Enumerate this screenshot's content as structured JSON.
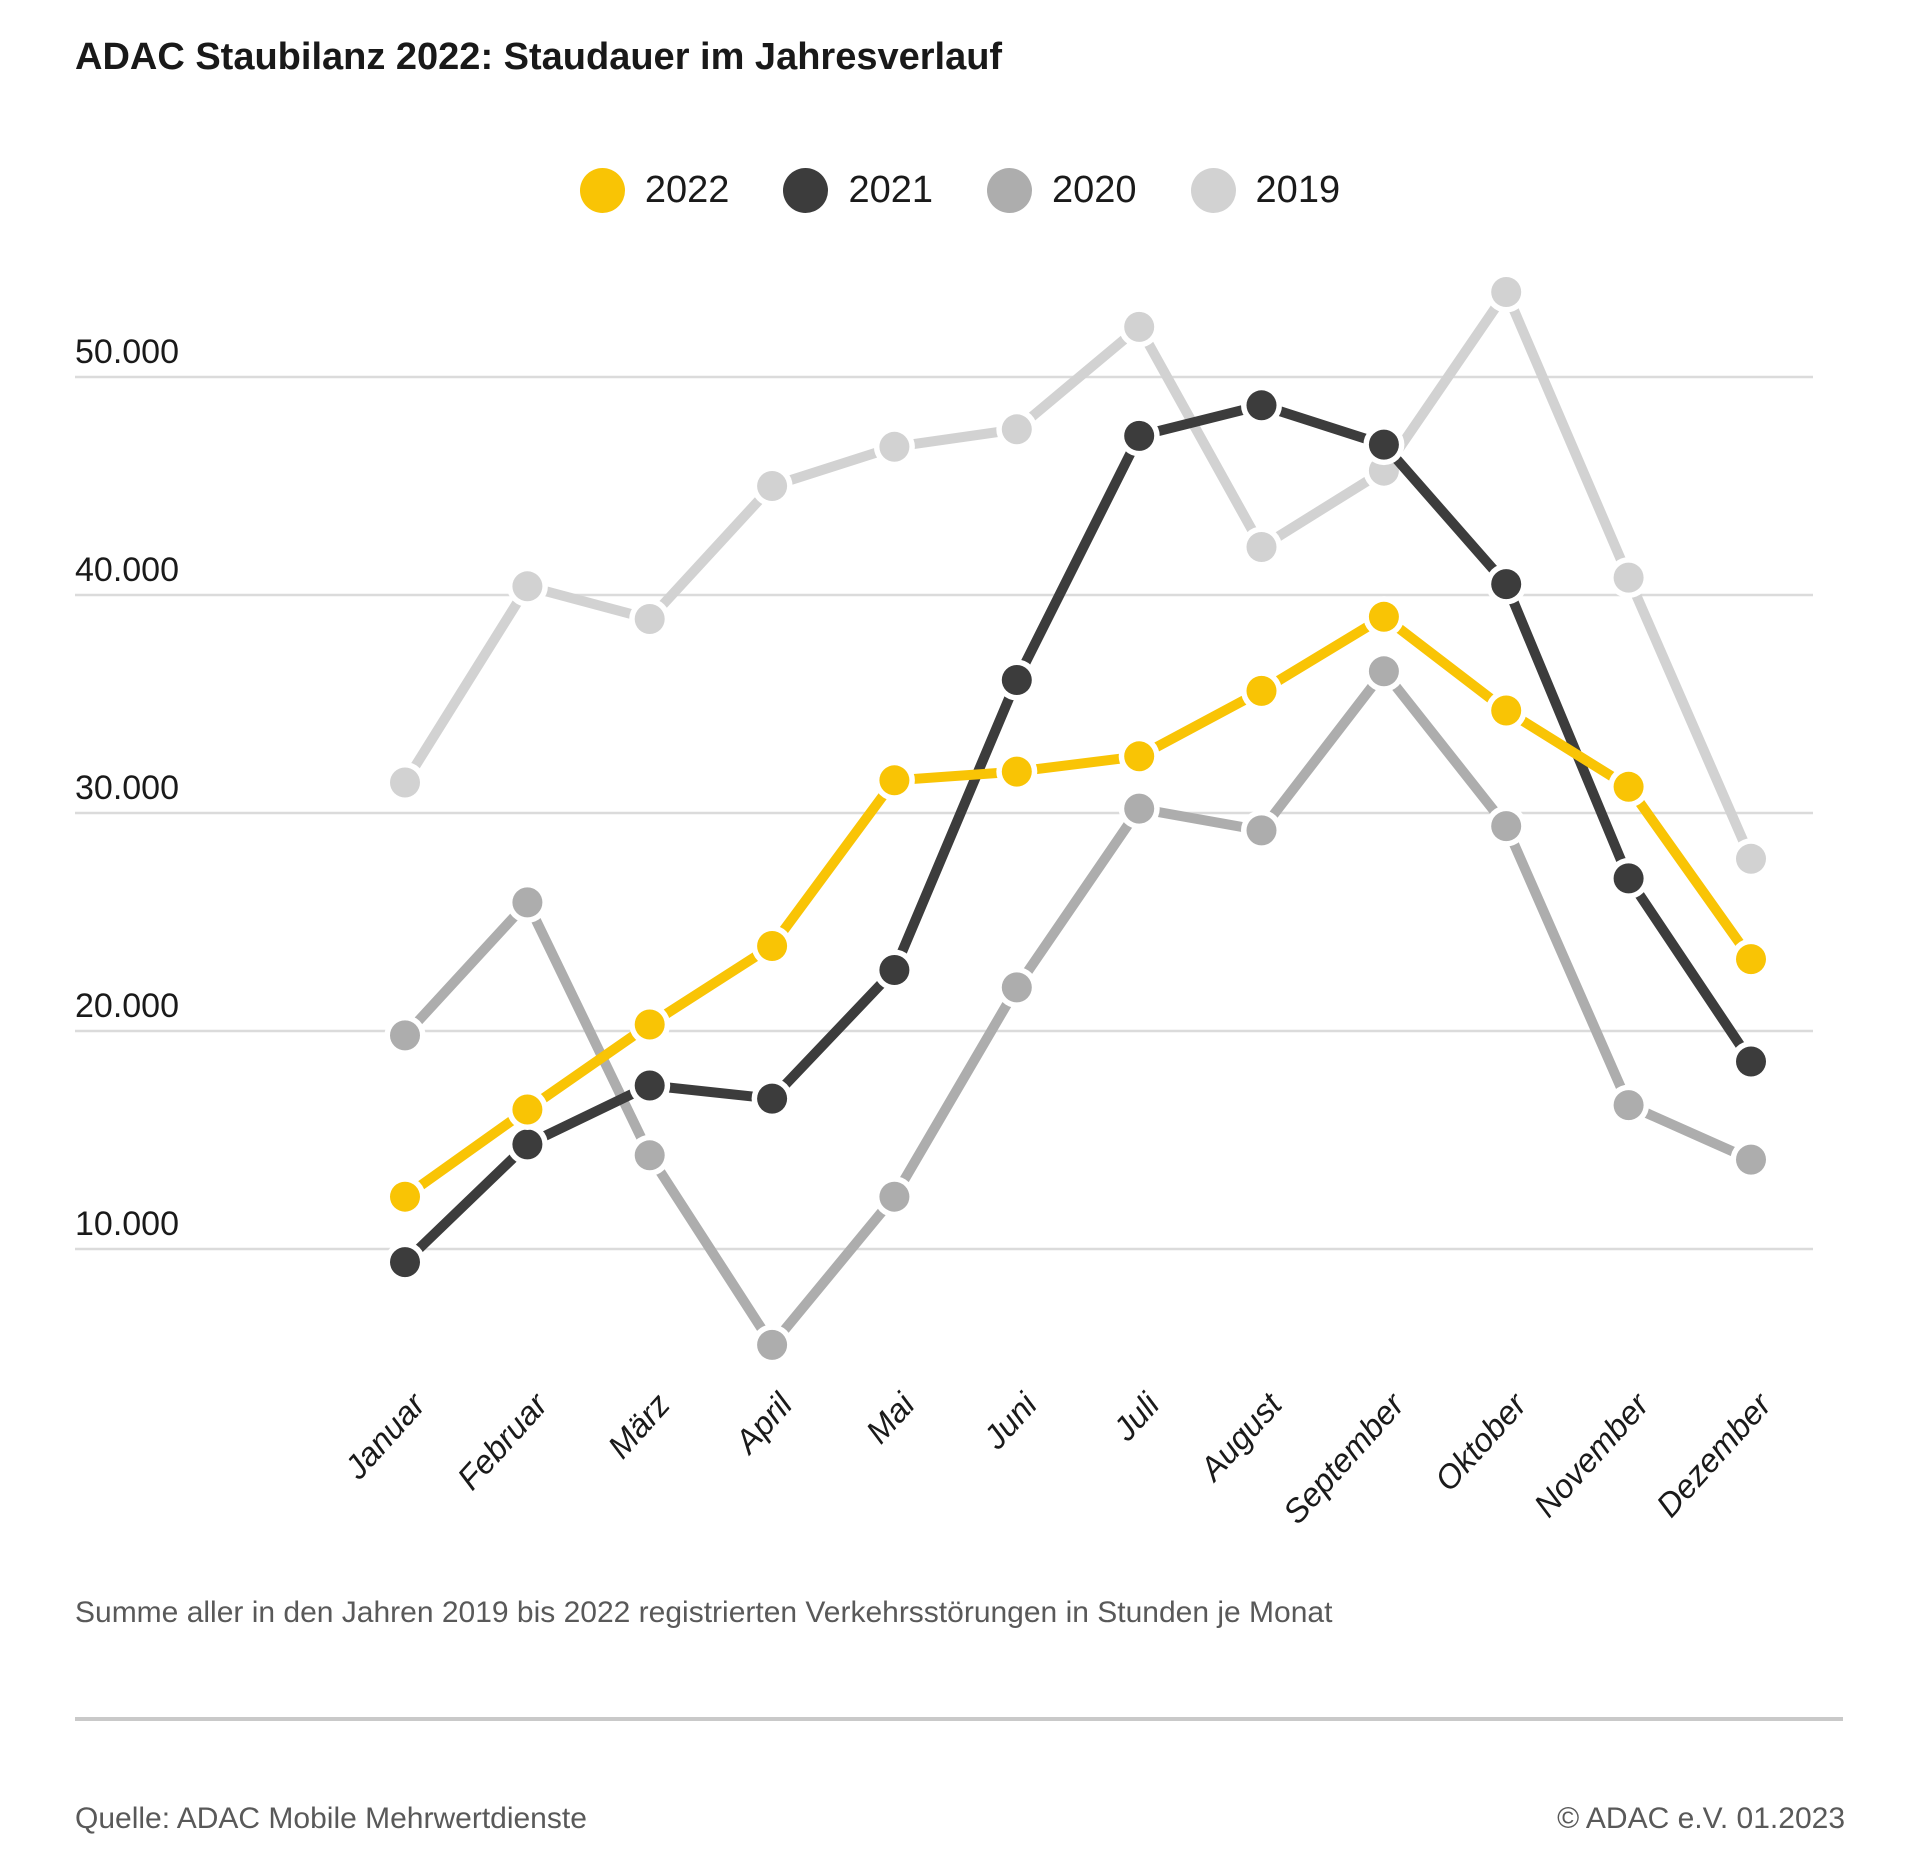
{
  "title": "ADAC Staubilanz 2022: Staudauer im Jahresverlauf",
  "footnote": "Summe aller in den Jahren 2019 bis 2022 registrierten Verkehrsstörungen in Stunden je Monat",
  "footer": {
    "source": "Quelle: ADAC Mobile Mehrwertdienste",
    "copyright": "© ADAC e.V. 01.2023"
  },
  "colors": {
    "series_2022": "#F9C405",
    "series_2021": "#3C3C3C",
    "series_2020": "#ADADAD",
    "series_2019": "#D2D2D2",
    "gridline": "#DBDBDB",
    "text_dark": "#1a1a1a",
    "text_gray": "#595959"
  },
  "chart_data": {
    "type": "line",
    "title": "ADAC Staubilanz 2022: Staudauer im Jahresverlauf",
    "subtitle": "Summe aller in den Jahren 2019 bis 2022 registrierten Verkehrsstörungen in Stunden je Monat",
    "categories": [
      "Januar",
      "Februar",
      "März",
      "April",
      "Mai",
      "Juni",
      "Juli",
      "August",
      "September",
      "Oktober",
      "November",
      "Dezember"
    ],
    "series": [
      {
        "name": "2022",
        "color": "#F9C405",
        "values": [
          12400,
          16400,
          20300,
          23900,
          31500,
          31900,
          32600,
          35600,
          39000,
          34700,
          31200,
          23300
        ]
      },
      {
        "name": "2021",
        "color": "#3C3C3C",
        "values": [
          9400,
          14800,
          17500,
          16900,
          22800,
          36100,
          47300,
          48700,
          46900,
          40500,
          27000,
          18600
        ]
      },
      {
        "name": "2020",
        "color": "#ADADAD",
        "values": [
          19800,
          25900,
          14300,
          5600,
          12400,
          22000,
          30200,
          29200,
          36500,
          29400,
          16600,
          14100
        ]
      },
      {
        "name": "2019",
        "color": "#D2D2D2",
        "values": [
          31400,
          40400,
          38900,
          45000,
          46800,
          47600,
          52300,
          42200,
          45700,
          53900,
          40800,
          27900
        ]
      }
    ],
    "y_axis": {
      "ticks": [
        10000,
        20000,
        30000,
        40000,
        50000
      ],
      "tick_labels": [
        "10.000",
        "20.000",
        "30.000",
        "40.000",
        "50.000"
      ],
      "range": [
        4000,
        56000
      ]
    },
    "x_axis": {
      "label_rotation_deg": -48
    },
    "grid": true,
    "legend_position": "top-center",
    "legend_order": [
      "2022",
      "2021",
      "2020",
      "2019"
    ],
    "draw_order": [
      "2019",
      "2020",
      "2021",
      "2022"
    ]
  }
}
